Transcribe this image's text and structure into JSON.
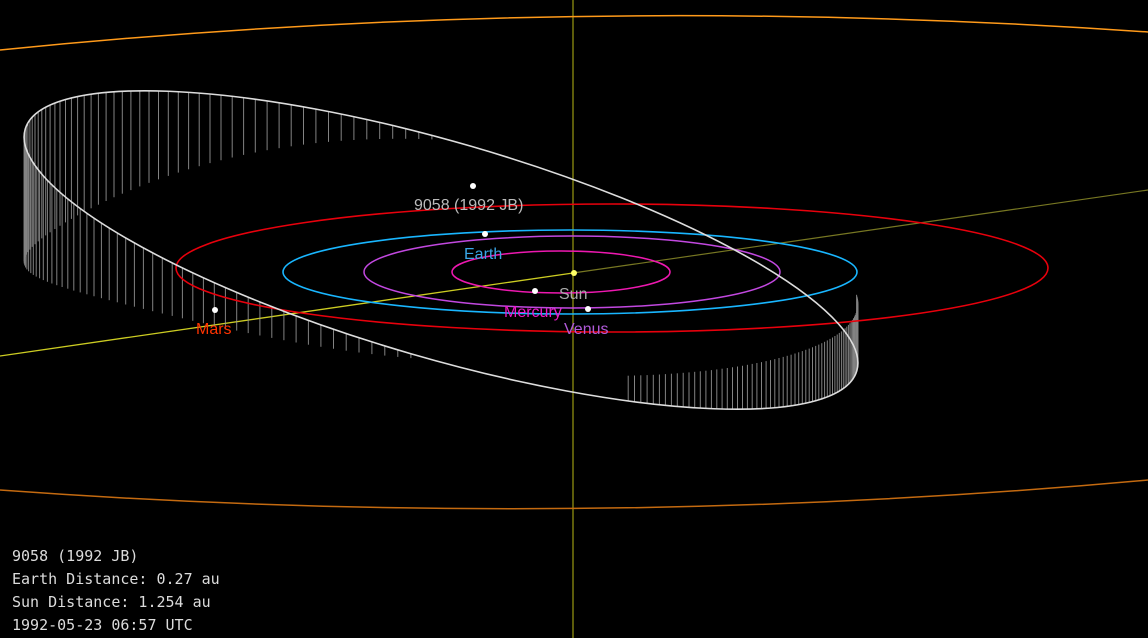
{
  "colors": {
    "background": "#000000",
    "jupiter_orbit": "#ff9a1a",
    "jupiter_orbit_far": "#c46a10",
    "mars_orbit": "#e8000c",
    "earth_orbit": "#19b6ff",
    "venus_orbit": "#c248e0",
    "mercury_orbit": "#ee18b0",
    "asteroid_orbit": "#dddddd",
    "axis_vertical": "#9a9a10",
    "axis_ecliptic": "#cccc22",
    "label_asteroid": "#bbbbbb",
    "label_earth": "#3aa6e6",
    "label_sun": "#aaaaaa",
    "label_mercury": "#ee18c8",
    "label_venus": "#b05ad8",
    "label_mars": "#ff3300"
  },
  "labels": {
    "asteroid": "9058 (1992 JB)",
    "earth": "Earth",
    "sun": "Sun",
    "mercury": "Mercury",
    "venus": "Venus",
    "mars": "Mars"
  },
  "info": {
    "object_name": "9058 (1992 JB)",
    "earth_distance": "Earth Distance: 0.27 au",
    "sun_distance": "Sun Distance: 1.254 au",
    "datetime": "1992-05-23 06:57 UTC"
  }
}
